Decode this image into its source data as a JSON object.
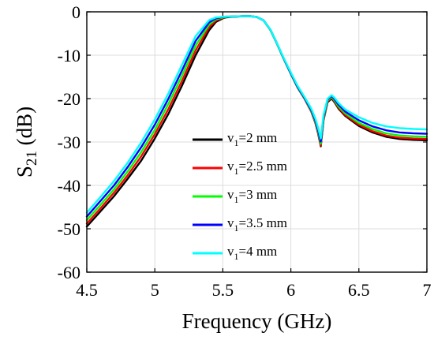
{
  "chart_data": {
    "type": "line",
    "xlabel": "Frequency (GHz)",
    "ylabel": {
      "main": "S",
      "sub": "21",
      "unit": " (dB)"
    },
    "xlim": [
      4.5,
      7
    ],
    "ylim": [
      -60,
      0
    ],
    "xticks": [
      "4.5",
      "5",
      "5.5",
      "6",
      "6.5",
      "7"
    ],
    "xtick_values": [
      4.5,
      5,
      5.5,
      6,
      6.5,
      7
    ],
    "yticks": [
      "0",
      "-10",
      "-20",
      "-30",
      "-40",
      "-50",
      "-60"
    ],
    "ytick_values": [
      0,
      -10,
      -20,
      -30,
      -40,
      -50,
      -60
    ],
    "grid": true,
    "legend_position": "center",
    "series": [
      {
        "name": "v1=2 mm",
        "legend": {
          "main": "v",
          "sub": "1",
          "rest": "=2 mm"
        },
        "color": "#000000",
        "x": [
          4.5,
          4.6,
          4.7,
          4.8,
          4.9,
          5.0,
          5.1,
          5.2,
          5.3,
          5.4,
          5.45,
          5.5,
          5.52,
          5.55,
          5.6,
          5.65,
          5.7,
          5.75,
          5.8,
          5.85,
          5.9,
          5.95,
          6.0,
          6.05,
          6.1,
          6.15,
          6.18,
          6.2,
          6.22,
          6.24,
          6.27,
          6.3,
          6.32,
          6.35,
          6.4,
          6.5,
          6.6,
          6.7,
          6.8,
          6.9,
          7.0
        ],
        "y": [
          -49.5,
          -46.0,
          -42.5,
          -38.5,
          -34.3,
          -29.2,
          -23.5,
          -17.0,
          -10.0,
          -4.2,
          -2.3,
          -1.5,
          -1.3,
          -1.2,
          -1.1,
          -1.0,
          -1.0,
          -1.2,
          -2.0,
          -4.2,
          -7.5,
          -11.0,
          -14.3,
          -17.5,
          -20.0,
          -23.0,
          -25.6,
          -28.0,
          -31.0,
          -25.0,
          -20.8,
          -20.0,
          -20.8,
          -22.3,
          -24.0,
          -26.3,
          -27.8,
          -28.8,
          -29.3,
          -29.5,
          -29.6
        ]
      },
      {
        "name": "v1=2.5 mm",
        "legend": {
          "main": "v",
          "sub": "1",
          "rest": "=2.5 mm"
        },
        "color": "#ff0000",
        "x": [
          4.5,
          4.6,
          4.7,
          4.8,
          4.9,
          5.0,
          5.1,
          5.2,
          5.3,
          5.4,
          5.45,
          5.5,
          5.52,
          5.55,
          5.6,
          5.65,
          5.7,
          5.75,
          5.8,
          5.85,
          5.9,
          5.95,
          6.0,
          6.05,
          6.1,
          6.15,
          6.18,
          6.2,
          6.22,
          6.24,
          6.27,
          6.3,
          6.32,
          6.35,
          6.4,
          6.5,
          6.6,
          6.7,
          6.8,
          6.9,
          7.0
        ],
        "y": [
          -48.8,
          -45.3,
          -41.7,
          -37.7,
          -33.3,
          -28.2,
          -22.4,
          -15.9,
          -8.9,
          -3.5,
          -2.0,
          -1.4,
          -1.2,
          -1.15,
          -1.1,
          -1.0,
          -1.0,
          -1.2,
          -2.0,
          -4.2,
          -7.5,
          -11.0,
          -14.3,
          -17.5,
          -20.0,
          -23.0,
          -25.5,
          -27.8,
          -30.8,
          -24.8,
          -20.6,
          -19.8,
          -20.6,
          -22.1,
          -23.8,
          -26.0,
          -27.5,
          -28.5,
          -29.0,
          -29.2,
          -29.3
        ]
      },
      {
        "name": "v1=3 mm",
        "legend": {
          "main": "v",
          "sub": "1",
          "rest": "=3 mm"
        },
        "color": "#00ff00",
        "x": [
          4.5,
          4.6,
          4.7,
          4.8,
          4.9,
          5.0,
          5.1,
          5.2,
          5.3,
          5.4,
          5.45,
          5.5,
          5.52,
          5.55,
          5.6,
          5.65,
          5.7,
          5.75,
          5.8,
          5.85,
          5.9,
          5.95,
          6.0,
          6.05,
          6.1,
          6.15,
          6.18,
          6.2,
          6.22,
          6.24,
          6.27,
          6.3,
          6.32,
          6.35,
          6.4,
          6.5,
          6.6,
          6.7,
          6.8,
          6.9,
          7.0
        ],
        "y": [
          -48.0,
          -44.5,
          -40.9,
          -36.8,
          -32.3,
          -27.2,
          -21.2,
          -14.7,
          -7.8,
          -2.9,
          -1.7,
          -1.3,
          -1.2,
          -1.1,
          -1.05,
          -1.0,
          -1.0,
          -1.2,
          -2.0,
          -4.2,
          -7.5,
          -11.0,
          -14.3,
          -17.4,
          -19.9,
          -22.8,
          -25.3,
          -27.5,
          -30.4,
          -24.5,
          -20.4,
          -19.6,
          -20.4,
          -21.8,
          -23.4,
          -25.6,
          -27.0,
          -28.0,
          -28.5,
          -28.7,
          -28.8
        ]
      },
      {
        "name": "v1=3.5 mm",
        "legend": {
          "main": "v",
          "sub": "1",
          "rest": "=3.5 mm"
        },
        "color": "#0000ff",
        "x": [
          4.5,
          4.6,
          4.7,
          4.8,
          4.9,
          5.0,
          5.1,
          5.2,
          5.3,
          5.4,
          5.45,
          5.5,
          5.52,
          5.55,
          5.6,
          5.65,
          5.7,
          5.75,
          5.8,
          5.85,
          5.9,
          5.95,
          6.0,
          6.05,
          6.1,
          6.15,
          6.18,
          6.2,
          6.22,
          6.24,
          6.27,
          6.3,
          6.32,
          6.35,
          6.4,
          6.5,
          6.6,
          6.7,
          6.8,
          6.9,
          7.0
        ],
        "y": [
          -47.2,
          -43.6,
          -40.0,
          -35.8,
          -31.2,
          -26.0,
          -20.0,
          -13.5,
          -6.7,
          -2.4,
          -1.5,
          -1.2,
          -1.1,
          -1.1,
          -1.05,
          -1.0,
          -1.0,
          -1.2,
          -2.0,
          -4.1,
          -7.4,
          -10.9,
          -14.2,
          -17.3,
          -19.8,
          -22.6,
          -25.0,
          -27.2,
          -29.9,
          -24.2,
          -20.2,
          -19.4,
          -20.1,
          -21.4,
          -23.0,
          -25.0,
          -26.4,
          -27.3,
          -27.8,
          -28.0,
          -28.1
        ]
      },
      {
        "name": "v1=4 mm",
        "legend": {
          "main": "v",
          "sub": "1",
          "rest": "=4 mm"
        },
        "color": "#00ffff",
        "x": [
          4.5,
          4.6,
          4.7,
          4.8,
          4.9,
          5.0,
          5.1,
          5.2,
          5.3,
          5.4,
          5.45,
          5.5,
          5.52,
          5.55,
          5.6,
          5.65,
          5.7,
          5.75,
          5.8,
          5.85,
          5.9,
          5.95,
          6.0,
          6.05,
          6.1,
          6.15,
          6.18,
          6.2,
          6.22,
          6.24,
          6.27,
          6.3,
          6.32,
          6.35,
          6.4,
          6.5,
          6.6,
          6.7,
          6.8,
          6.9,
          7.0
        ],
        "y": [
          -46.3,
          -42.7,
          -39.0,
          -34.8,
          -30.1,
          -24.8,
          -18.8,
          -12.2,
          -5.6,
          -1.9,
          -1.3,
          -1.15,
          -1.1,
          -1.1,
          -1.05,
          -1.0,
          -1.0,
          -1.2,
          -2.0,
          -4.1,
          -7.4,
          -10.8,
          -14.0,
          -17.1,
          -19.6,
          -22.3,
          -24.6,
          -26.7,
          -29.2,
          -23.8,
          -20.0,
          -19.2,
          -19.8,
          -21.0,
          -22.5,
          -24.3,
          -25.6,
          -26.4,
          -26.8,
          -27.0,
          -27.1
        ]
      }
    ]
  }
}
